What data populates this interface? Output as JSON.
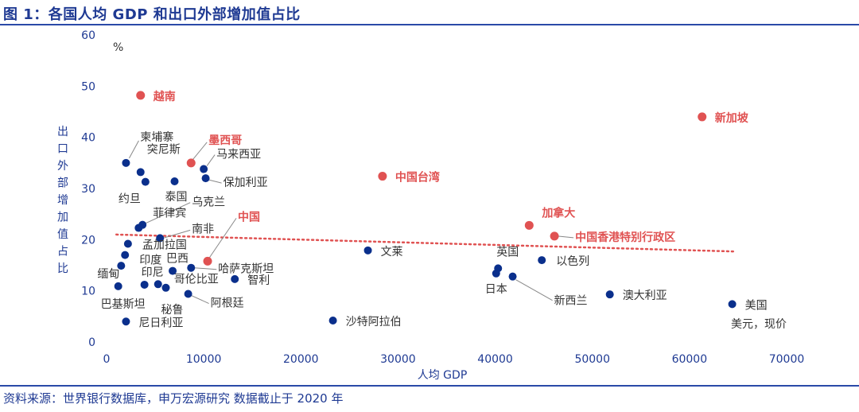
{
  "header": {
    "title": "图 1：各国人均 GDP 和出口外部增加值占比"
  },
  "footer": {
    "source": "资料来源：世界银行数据库，申万宏源研究 数据截止于 2020 年"
  },
  "colors": {
    "normal": "#0a2f8c",
    "highlight": "#e05252",
    "trend": "#e05252",
    "axis_text": "#1f3a93"
  },
  "chart_data": {
    "type": "scatter",
    "title": "图 1：各国人均 GDP 和出口外部增加值占比",
    "xlabel": "人均 GDP",
    "ylabel": "出口外部增加值占比",
    "unit_y": "%",
    "unit_x_note": "美元，现价",
    "xlim": [
      0,
      70000
    ],
    "ylim": [
      0,
      60
    ],
    "xticks": [
      0,
      10000,
      20000,
      30000,
      40000,
      50000,
      60000,
      70000
    ],
    "yticks": [
      0,
      10,
      20,
      30,
      40,
      50,
      60
    ],
    "grid": false,
    "trendline": {
      "style": "dotted",
      "x": [
        1000,
        64500
      ],
      "y": [
        21.0,
        17.7
      ]
    },
    "points": [
      {
        "name": "越南",
        "x": 3500,
        "y": 48.2,
        "highlight": true
      },
      {
        "name": "新加坡",
        "x": 61300,
        "y": 44.0,
        "highlight": true
      },
      {
        "name": "柬埔寨",
        "x": 2000,
        "y": 35.0,
        "highlight": false
      },
      {
        "name": "墨西哥",
        "x": 8700,
        "y": 35.0,
        "highlight": true
      },
      {
        "name": "突尼斯",
        "x": 3500,
        "y": 33.2,
        "highlight": false
      },
      {
        "name": "马来西亚",
        "x": 10000,
        "y": 33.8,
        "highlight": false
      },
      {
        "name": "保加利亚",
        "x": 10200,
        "y": 32.0,
        "highlight": false
      },
      {
        "name": "约旦",
        "x": 4000,
        "y": 31.3,
        "highlight": false
      },
      {
        "name": "泰国",
        "x": 7000,
        "y": 31.4,
        "highlight": false
      },
      {
        "name": "中国台湾",
        "x": 28400,
        "y": 32.4,
        "highlight": true
      },
      {
        "name": "乌克兰",
        "x": 3700,
        "y": 22.9,
        "highlight": false
      },
      {
        "name": "菲律宾",
        "x": 3300,
        "y": 22.3,
        "highlight": false
      },
      {
        "name": "南非",
        "x": 5500,
        "y": 20.3,
        "highlight": false
      },
      {
        "name": "孟加拉国",
        "x": 2200,
        "y": 19.2,
        "highlight": false
      },
      {
        "name": "中国",
        "x": 10400,
        "y": 15.8,
        "highlight": true
      },
      {
        "name": "印度",
        "x": 1900,
        "y": 17.0,
        "highlight": false
      },
      {
        "name": "巴西",
        "x": 6800,
        "y": 13.9,
        "highlight": false
      },
      {
        "name": "哈萨克斯坦",
        "x": 8700,
        "y": 14.5,
        "highlight": false
      },
      {
        "name": "缅甸",
        "x": 1500,
        "y": 14.9,
        "highlight": false
      },
      {
        "name": "印尼",
        "x": 3900,
        "y": 11.2,
        "highlight": false
      },
      {
        "name": "哥伦比亚",
        "x": 5300,
        "y": 11.3,
        "highlight": false
      },
      {
        "name": "智利",
        "x": 13200,
        "y": 12.3,
        "highlight": false
      },
      {
        "name": "巴基斯坦",
        "x": 1200,
        "y": 10.9,
        "highlight": false
      },
      {
        "name": "秘鲁",
        "x": 6100,
        "y": 10.6,
        "highlight": false
      },
      {
        "name": "阿根廷",
        "x": 8400,
        "y": 9.4,
        "highlight": false
      },
      {
        "name": "尼日利亚",
        "x": 2000,
        "y": 4.0,
        "highlight": false
      },
      {
        "name": "沙特阿拉伯",
        "x": 23300,
        "y": 4.2,
        "highlight": false
      },
      {
        "name": "文莱",
        "x": 26900,
        "y": 17.9,
        "highlight": false
      },
      {
        "name": "英国",
        "x": 40300,
        "y": 14.4,
        "highlight": false
      },
      {
        "name": "日本",
        "x": 40100,
        "y": 13.4,
        "highlight": false
      },
      {
        "name": "新西兰",
        "x": 41800,
        "y": 12.8,
        "highlight": false
      },
      {
        "name": "以色列",
        "x": 44800,
        "y": 16.0,
        "highlight": false
      },
      {
        "name": "加拿大",
        "x": 43500,
        "y": 22.8,
        "highlight": true
      },
      {
        "name": "中国香港特别行政区",
        "x": 46100,
        "y": 20.7,
        "highlight": true
      },
      {
        "name": "澳大利亚",
        "x": 51800,
        "y": 9.3,
        "highlight": false
      },
      {
        "name": "美国",
        "x": 64400,
        "y": 7.4,
        "highlight": false
      }
    ]
  }
}
